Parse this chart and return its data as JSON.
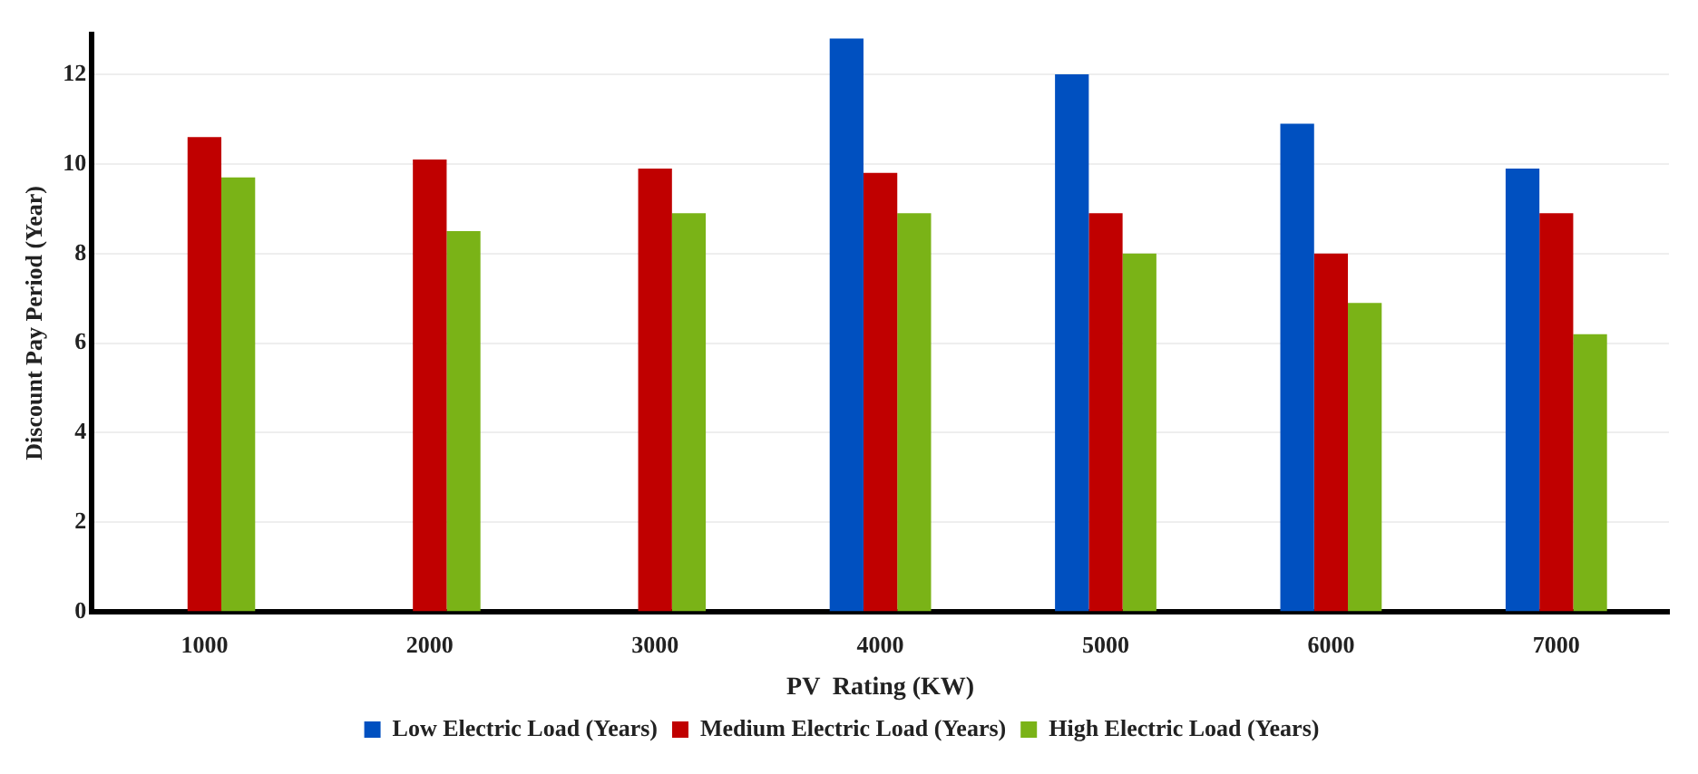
{
  "chart_data": {
    "type": "bar",
    "xlabel": "PV  Rating (KW)",
    "ylabel": "Discount Pay Period (Year)",
    "categories": [
      "1000",
      "2000",
      "3000",
      "4000",
      "5000",
      "6000",
      "7000"
    ],
    "series": [
      {
        "name": "Low Electric Load (Years)",
        "color": "#0050c0",
        "values": [
          null,
          null,
          null,
          12.8,
          12.0,
          10.9,
          9.9
        ]
      },
      {
        "name": "Medium Electric Load (Years)",
        "color": "#c00000",
        "values": [
          10.6,
          10.1,
          9.9,
          9.8,
          8.9,
          8.0,
          8.9
        ]
      },
      {
        "name": "High Electric Load (Years)",
        "color": "#7ab317",
        "values": [
          9.7,
          8.5,
          8.9,
          8.9,
          8.0,
          6.9,
          6.2
        ]
      }
    ],
    "ylim": [
      0,
      12.9
    ],
    "yticks": [
      0,
      2,
      4,
      6,
      8,
      10,
      12
    ],
    "grid": "y",
    "legend": "bottom"
  }
}
